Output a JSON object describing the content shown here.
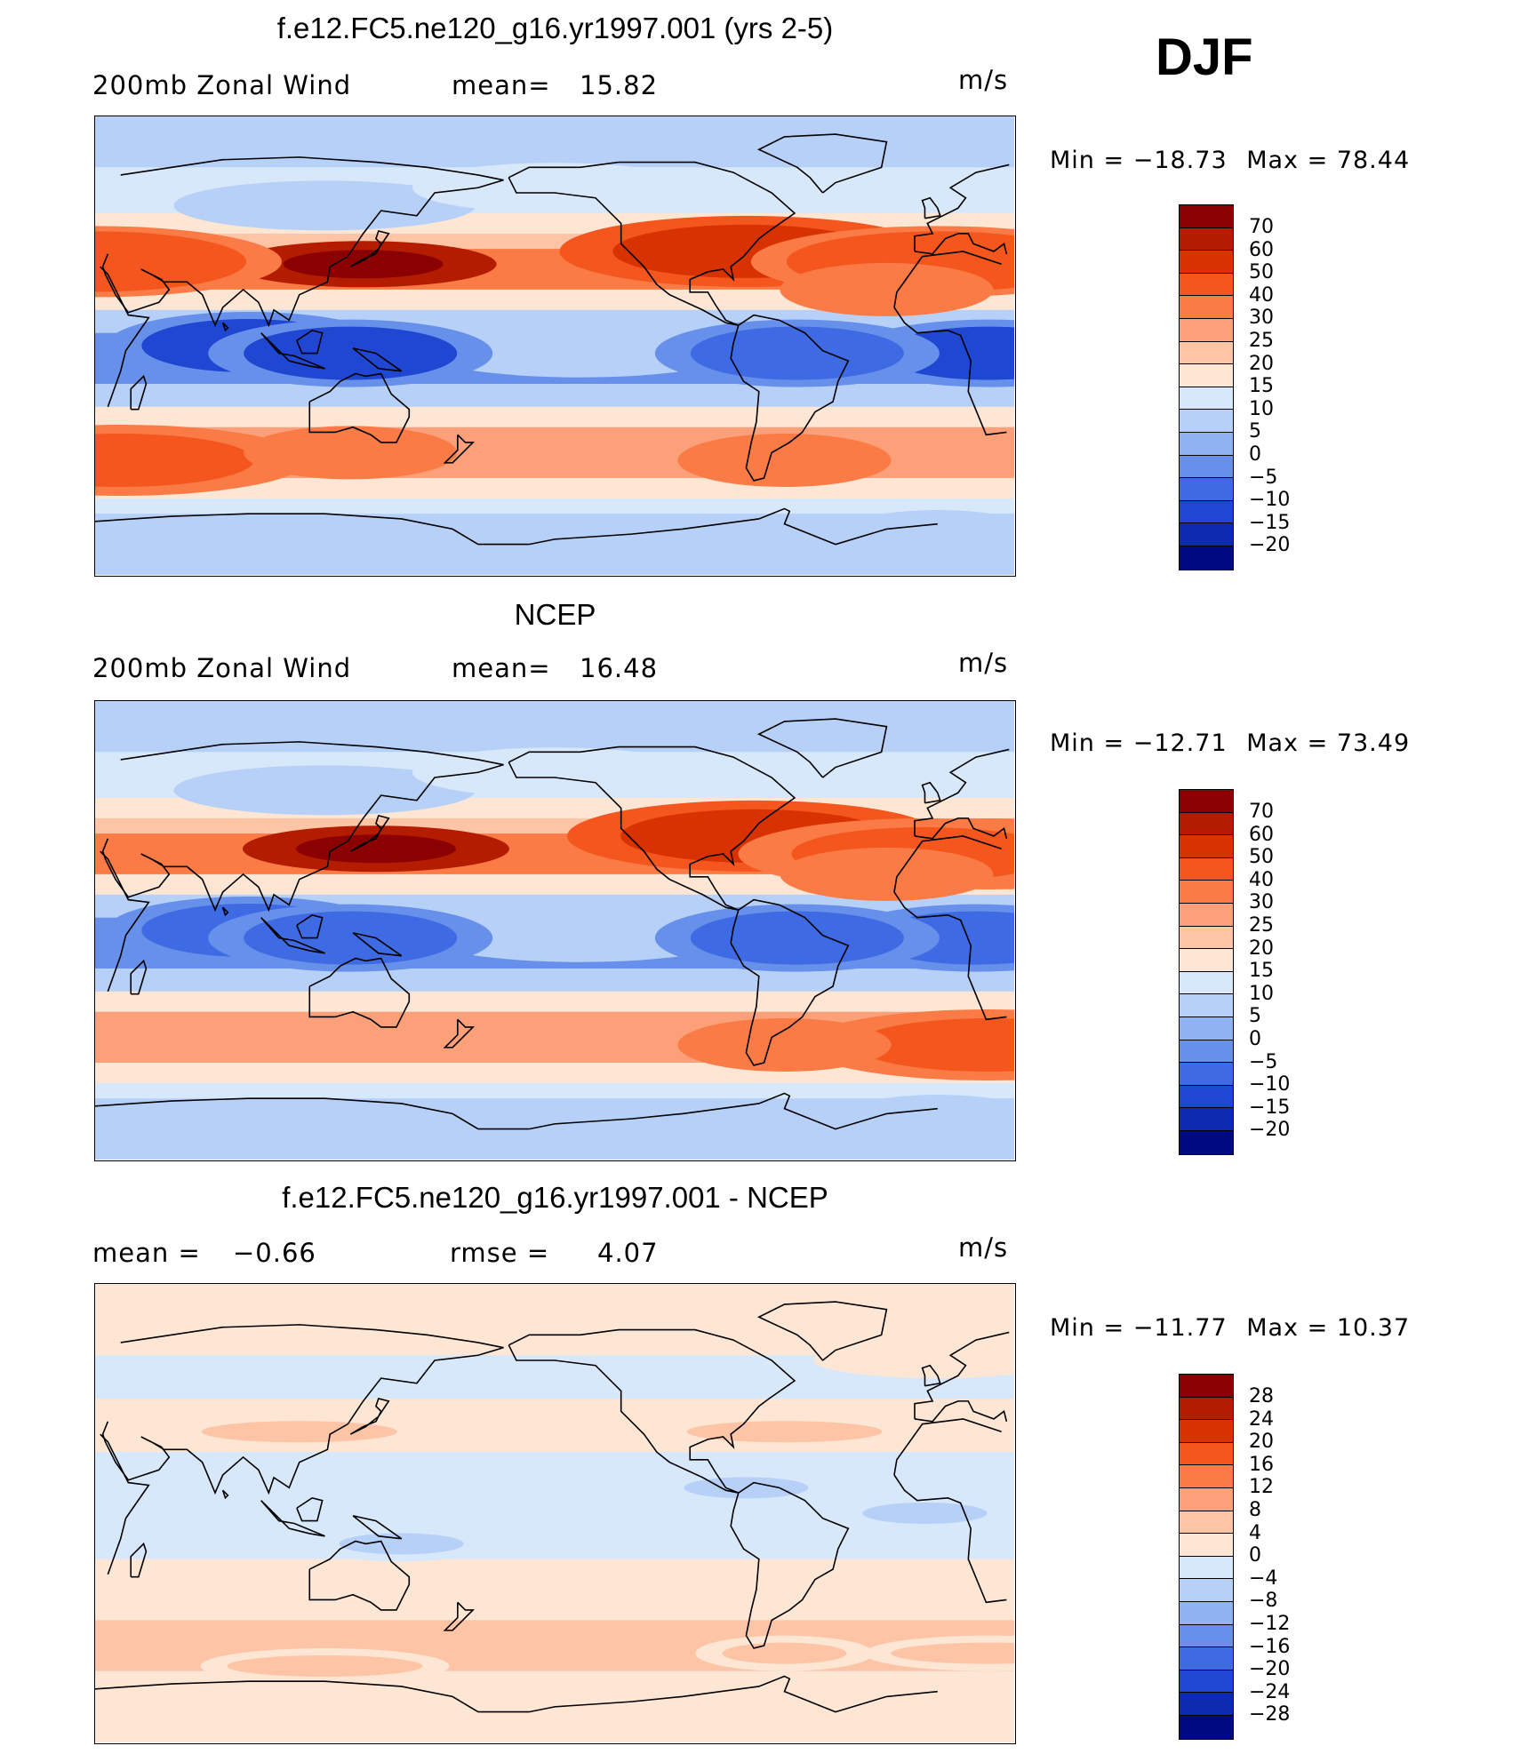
{
  "season": "DJF",
  "panels": [
    {
      "title": "f.e12.FC5.ne120_g16.yr1997.001 (yrs 2-5)",
      "left_label": "200mb Zonal Wind",
      "mid_label": "mean=",
      "mid_value": "15.82",
      "units": "m/s",
      "min_label": "Min = −18.73",
      "max_label": "Max = 78.44"
    },
    {
      "title": "NCEP",
      "left_label": "200mb Zonal Wind",
      "mid_label": "mean=",
      "mid_value": "16.48",
      "units": "m/s",
      "min_label": "Min = −12.71",
      "max_label": "Max = 73.49"
    },
    {
      "title": "f.e12.FC5.ne120_g16.yr1997.001 - NCEP",
      "left_label": "mean =",
      "left_value": "−0.66",
      "mid_label": "rmse =",
      "mid_value": "4.07",
      "units": "m/s",
      "min_label": "Min = −11.77",
      "max_label": "Max = 10.37"
    }
  ],
  "colorbars": {
    "wind": {
      "labels": [
        "70",
        "60",
        "50",
        "40",
        "30",
        "25",
        "20",
        "15",
        "10",
        "5",
        "0",
        "−5",
        "−10",
        "−15",
        "−20"
      ],
      "colors": [
        "#8b0000",
        "#b41c00",
        "#d83200",
        "#f4561d",
        "#fa7b45",
        "#fca07a",
        "#fdc4a6",
        "#fde6d4",
        "#d8e8fb",
        "#b6d0f7",
        "#8fb3f2",
        "#6790eb",
        "#3e6ae3",
        "#1f47d2",
        "#0d2bb0",
        "#000a80"
      ]
    },
    "diff": {
      "labels": [
        "28",
        "24",
        "20",
        "16",
        "12",
        "8",
        "4",
        "0",
        "−4",
        "−8",
        "−12",
        "−16",
        "−20",
        "−24",
        "−28"
      ],
      "colors": [
        "#8b0000",
        "#b41c00",
        "#d83200",
        "#f4561d",
        "#fa7b45",
        "#fca07a",
        "#fdc4a6",
        "#fde6d4",
        "#d8e8fb",
        "#b6d0f7",
        "#8fb3f2",
        "#6790eb",
        "#3e6ae3",
        "#1f47d2",
        "#0d2bb0",
        "#000a80"
      ]
    }
  },
  "chart_data": [
    {
      "type": "heatmap",
      "title": "f.e12.FC5.ne120_g16.yr1997.001 (yrs 2-5)",
      "subtitle": "200mb Zonal Wind",
      "units": "m/s",
      "mean": 15.82,
      "min": -18.73,
      "max": 78.44,
      "contour_levels": [
        -20,
        -15,
        -10,
        -5,
        0,
        5,
        10,
        15,
        20,
        25,
        30,
        40,
        50,
        60,
        70
      ],
      "field_features": [
        {
          "lon": 135,
          "lat": 32,
          "value": 70
        },
        {
          "lon": -75,
          "lat": 37,
          "value": 50
        },
        {
          "lon": 30,
          "lat": 33,
          "value": 45
        },
        {
          "lon": 0,
          "lat": 33,
          "value": 45
        },
        {
          "lon": -20,
          "lat": 22,
          "value": 35
        },
        {
          "lon": 90,
          "lat": 0,
          "value": -15
        },
        {
          "lon": 20,
          "lat": -3,
          "value": -15
        },
        {
          "lon": 130,
          "lat": -3,
          "value": -15
        },
        {
          "lon": -55,
          "lat": -3,
          "value": -10
        },
        {
          "lon": 40,
          "lat": -45,
          "value": 40
        },
        {
          "lon": 130,
          "lat": -42,
          "value": 35
        },
        {
          "lon": -60,
          "lat": -45,
          "value": 35
        },
        {
          "lon": 0,
          "lat": -75,
          "value": 5
        }
      ]
    },
    {
      "type": "heatmap",
      "title": "NCEP",
      "subtitle": "200mb Zonal Wind",
      "units": "m/s",
      "mean": 16.48,
      "min": -12.71,
      "max": 73.49,
      "contour_levels": [
        -20,
        -15,
        -10,
        -5,
        0,
        5,
        10,
        15,
        20,
        25,
        30,
        40,
        50,
        60,
        70
      ],
      "field_features": [
        {
          "lon": 140,
          "lat": 32,
          "value": 70
        },
        {
          "lon": -72,
          "lat": 37,
          "value": 50
        },
        {
          "lon": 20,
          "lat": 30,
          "value": 45
        },
        {
          "lon": -5,
          "lat": 30,
          "value": 40
        },
        {
          "lon": -20,
          "lat": 22,
          "value": 35
        },
        {
          "lon": 90,
          "lat": 0,
          "value": -10
        },
        {
          "lon": 15,
          "lat": -3,
          "value": -10
        },
        {
          "lon": 130,
          "lat": -3,
          "value": -10
        },
        {
          "lon": -55,
          "lat": -3,
          "value": -10
        },
        {
          "lon": 20,
          "lat": -45,
          "value": 40
        },
        {
          "lon": -60,
          "lat": -45,
          "value": 35
        },
        {
          "lon": 0,
          "lat": -75,
          "value": 5
        }
      ]
    },
    {
      "type": "heatmap",
      "title": "f.e12.FC5.ne120_g16.yr1997.001 - NCEP",
      "units": "m/s",
      "mean": -0.66,
      "rmse": 4.07,
      "min": -11.77,
      "max": 10.37,
      "contour_levels": [
        -28,
        -24,
        -20,
        -16,
        -12,
        -8,
        -4,
        0,
        4,
        8,
        12,
        16,
        20,
        24,
        28
      ],
      "field_features": [
        {
          "lon": -75,
          "lat": 10,
          "value": -8
        },
        {
          "lon": -5,
          "lat": 0,
          "value": -6
        },
        {
          "lon": 150,
          "lat": -12,
          "value": -6
        },
        {
          "lon": 110,
          "lat": 32,
          "value": 4
        },
        {
          "lon": 20,
          "lat": -55,
          "value": 4
        },
        {
          "lon": -60,
          "lat": -55,
          "value": 6
        },
        {
          "lon": 120,
          "lat": -60,
          "value": 4
        },
        {
          "lon": 0,
          "lat": 60,
          "value": 3
        },
        {
          "lon": -60,
          "lat": 32,
          "value": 4
        }
      ]
    }
  ]
}
